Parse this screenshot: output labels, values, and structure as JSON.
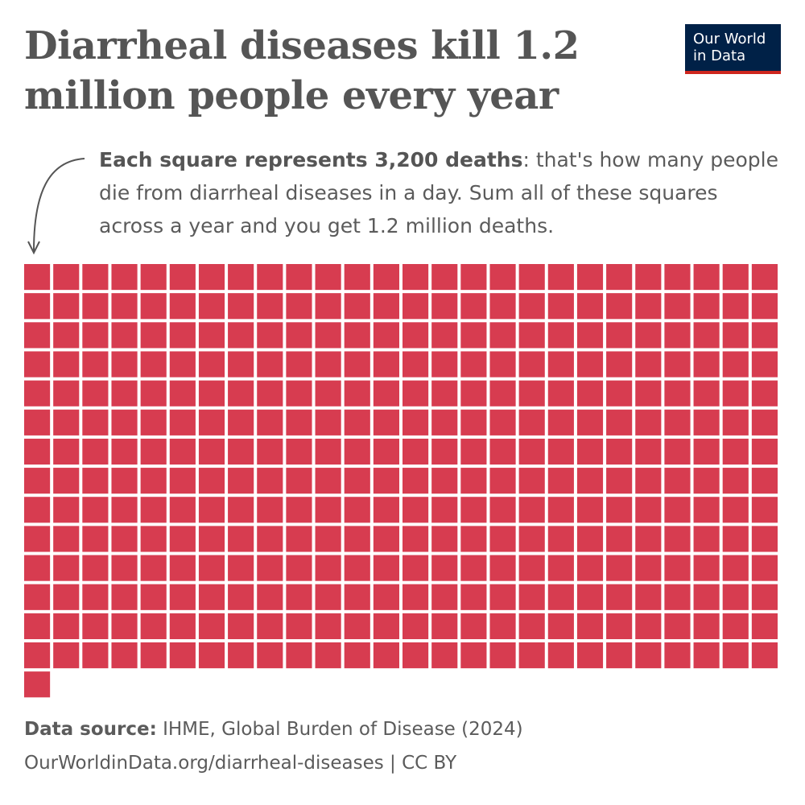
{
  "chart_data": {
    "type": "waffle",
    "title": "Diarrheal diseases kill 1.2 million people every year",
    "subtitle_bold": "Each square represents 3,200 deaths",
    "subtitle": ": that's how many people die from diarrheal diseases in a day. Sum all of these squares across a year and you get 1.2 million deaths.",
    "count": 365,
    "color": "#d73c50",
    "logo": "Our World in Data",
    "source_label": "Data source:",
    "source": "IHME, Global Burden of Disease (2024)",
    "footer": "OurWorldinData.org/diarrheal-diseases | CC BY"
  }
}
